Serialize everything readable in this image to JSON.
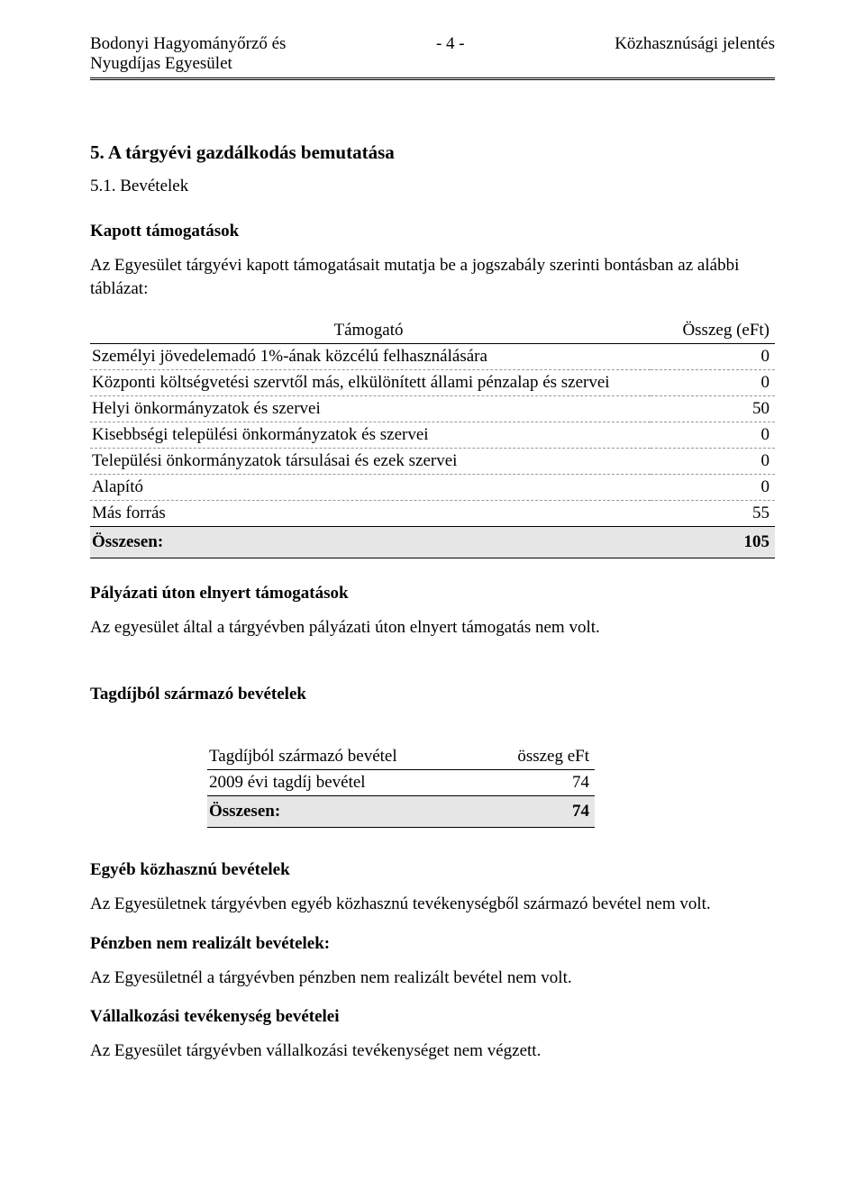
{
  "header": {
    "org_line1": "Bodonyi Hagyományőrző és",
    "org_line2": "Nyugdíjas Egyesület",
    "page_num": "- 4 -",
    "doc_title": "Közhasznúsági jelentés"
  },
  "section5": {
    "title": "5. A tárgyévi gazdálkodás bemutatása",
    "sub51_title": "5.1. Bevételek",
    "kapott_heading": "Kapott támogatások",
    "kapott_intro": "Az Egyesület tárgyévi kapott támogatásait mutatja be a jogszabály szerinti bontásban az alábbi táblázat:",
    "table1": {
      "col1": "Támogató",
      "col2": "Összeg (eFt)",
      "rows": [
        {
          "label": "Személyi jövedelemadó 1%-ának közcélú felhasználására",
          "value": "0"
        },
        {
          "label": "Központi költségvetési szervtől más, elkülönített állami pénzalap és szervei",
          "value": "0"
        },
        {
          "label": "Helyi önkormányzatok és szervei",
          "value": "50"
        },
        {
          "label": "Kisebbségi települési önkormányzatok és szervei",
          "value": "0"
        },
        {
          "label": "Települési önkormányzatok társulásai és ezek szervei",
          "value": "0"
        },
        {
          "label": "Alapító",
          "value": "0"
        },
        {
          "label": "Más forrás",
          "value": "55"
        }
      ],
      "total_label": "Összesen:",
      "total_value": "105"
    },
    "palyazati_heading": "Pályázati úton elnyert támogatások",
    "palyazati_text": "Az egyesület által a tárgyévben pályázati úton elnyert támogatás nem volt.",
    "tagdij_heading": "Tagdíjból származó bevételek",
    "table2": {
      "col1": "Tagdíjból származó bevétel",
      "col2": "összeg eFt",
      "rows": [
        {
          "label": "2009 évi tagdíj bevétel",
          "value": "74"
        }
      ],
      "total_label": "Összesen:",
      "total_value": "74"
    },
    "egyeb_heading": "Egyéb közhasznú bevételek",
    "egyeb_text": "Az Egyesületnek tárgyévben egyéb közhasznú tevékenységből származó bevétel nem volt.",
    "penzben_heading": "Pénzben nem realizált bevételek:",
    "penzben_text": "Az Egyesületnél a tárgyévben pénzben nem realizált bevétel nem volt.",
    "vallalkoz_heading": "Vállalkozási tevékenység bevételei",
    "vallalkoz_text": "Az Egyesület tárgyévben vállalkozási tevékenységet nem végzett."
  }
}
